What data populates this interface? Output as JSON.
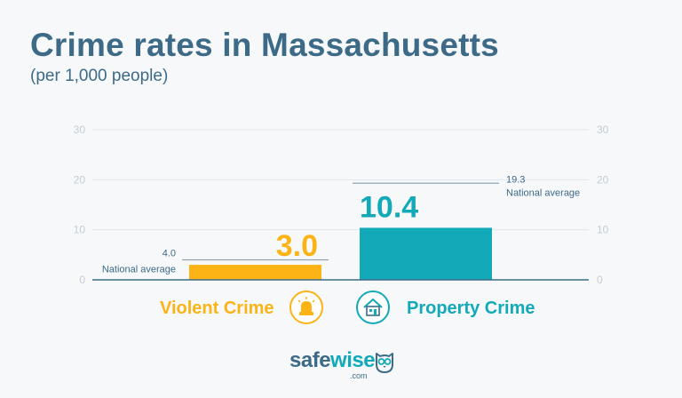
{
  "chart_data": {
    "type": "bar",
    "title": "Crime rates in Massachusetts",
    "subtitle": "(per 1,000 people)",
    "categories": [
      "Violent Crime",
      "Property Crime"
    ],
    "values": [
      3.0,
      10.4
    ],
    "value_labels": [
      "3.0",
      "10.4"
    ],
    "national_average": [
      {
        "value": 4.0,
        "value_label": "4.0",
        "label": "National average"
      },
      {
        "value": 19.3,
        "value_label": "19.3",
        "label": "National average"
      }
    ],
    "ylim": [
      0,
      30
    ],
    "yticks": [
      "0",
      "10",
      "20",
      "30"
    ],
    "grid": true,
    "colors": [
      "#fbb316",
      "#12a9b8"
    ],
    "axis_color": "#3d6a87",
    "text_color": "#3d6a87"
  },
  "legend": [
    {
      "label": "Violent Crime",
      "icon": "siren-icon",
      "color": "#fbb316"
    },
    {
      "label": "Property Crime",
      "icon": "house-icon",
      "color": "#12a9b8"
    }
  ],
  "logo": {
    "name_part1": "safe",
    "name_part2": "wise",
    "suffix": ".com",
    "icon": "owl-icon"
  }
}
